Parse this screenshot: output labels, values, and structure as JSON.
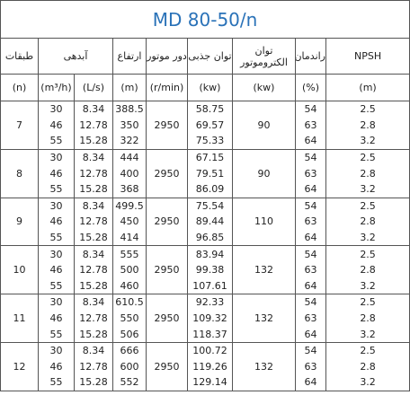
{
  "title": "MD  80-50/n",
  "headers": [
    "طبقات",
    "آبدهی",
    "ارتفاع",
    "دور موتور",
    "توان جذبی",
    "توان الکتروموتور",
    "راندمان",
    "NPSH"
  ],
  "units": [
    "(n)",
    "(m³/h)",
    "(L/s)",
    "(m)",
    "(r/min)",
    "(kw)",
    "(kw)",
    "(%)",
    "(m)"
  ],
  "groups": [
    {
      "stage": "7",
      "rpm": "2950",
      "motor": "90",
      "rows": [
        [
          "30",
          "8.34",
          "388.5",
          "58.75",
          "54",
          "2.5"
        ],
        [
          "46",
          "12.78",
          "350",
          "69.57",
          "63",
          "2.8"
        ],
        [
          "55",
          "15.28",
          "322",
          "75.33",
          "64",
          "3.2"
        ]
      ]
    },
    {
      "stage": "8",
      "rpm": "2950",
      "motor": "90",
      "rows": [
        [
          "30",
          "8.34",
          "444",
          "67.15",
          "54",
          "2.5"
        ],
        [
          "46",
          "12.78",
          "400",
          "79.51",
          "63",
          "2.8"
        ],
        [
          "55",
          "15.28",
          "368",
          "86.09",
          "64",
          "3.2"
        ]
      ]
    },
    {
      "stage": "9",
      "rpm": "2950",
      "motor": "110",
      "rows": [
        [
          "30",
          "8.34",
          "499.5",
          "75.54",
          "54",
          "2.5"
        ],
        [
          "46",
          "12.78",
          "450",
          "89.44",
          "63",
          "2.8"
        ],
        [
          "55",
          "15.28",
          "414",
          "96.85",
          "64",
          "3.2"
        ]
      ]
    },
    {
      "stage": "10",
      "rpm": "2950",
      "motor": "132",
      "rows": [
        [
          "30",
          "8.34",
          "555",
          "83.94",
          "54",
          "2.5"
        ],
        [
          "46",
          "12.78",
          "500",
          "99.38",
          "63",
          "2.8"
        ],
        [
          "55",
          "15.28",
          "460",
          "107.61",
          "64",
          "3.2"
        ]
      ]
    },
    {
      "stage": "11",
      "rpm": "2950",
      "motor": "132",
      "rows": [
        [
          "30",
          "8.34",
          "610.5",
          "92.33",
          "54",
          "2.5"
        ],
        [
          "46",
          "12.78",
          "550",
          "109.32",
          "63",
          "2.8"
        ],
        [
          "55",
          "15.28",
          "506",
          "118.37",
          "64",
          "3.2"
        ]
      ]
    },
    {
      "stage": "12",
      "rpm": "2950",
      "motor": "132",
      "rows": [
        [
          "30",
          "8.34",
          "666",
          "100.72",
          "54",
          "2.5"
        ],
        [
          "46",
          "12.78",
          "600",
          "119.26",
          "63",
          "2.8"
        ],
        [
          "55",
          "15.28",
          "552",
          "129.14",
          "64",
          "3.2"
        ]
      ]
    }
  ]
}
